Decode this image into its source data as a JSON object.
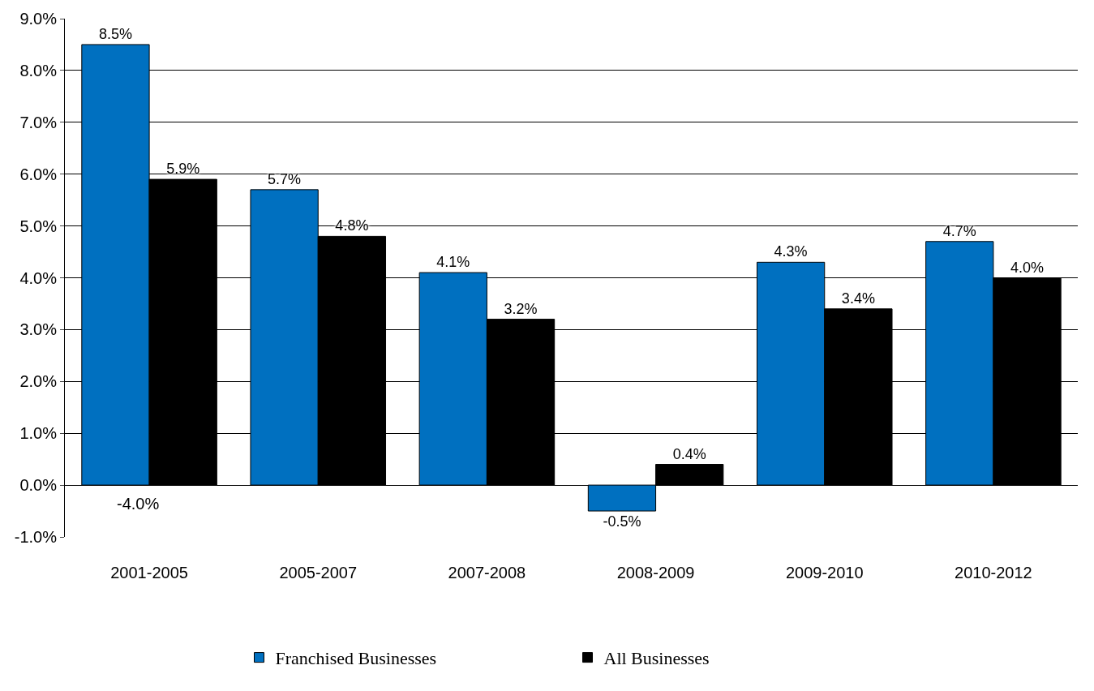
{
  "chart_data": {
    "type": "bar",
    "categories": [
      "2001-2005",
      "2005-2007",
      "2007-2008",
      "2008-2009",
      "2009-2010",
      "2010-2012"
    ],
    "series": [
      {
        "name": "Franchised Businesses",
        "color": "#0070c0",
        "values": [
          8.5,
          5.7,
          4.1,
          -0.5,
          4.3,
          4.7
        ],
        "value_labels": [
          "8.5%",
          "5.7%",
          "4.1%",
          "-0.5%",
          "4.3%",
          "4.7%"
        ]
      },
      {
        "name": "All Businesses",
        "color": "#000000",
        "values": [
          5.9,
          4.8,
          3.2,
          0.4,
          3.4,
          4.0
        ],
        "value_labels": [
          "5.9%",
          "4.8%",
          "3.2%",
          "0.4%",
          "3.4%",
          "4.0%"
        ]
      }
    ],
    "ylim": [
      -1,
      9
    ],
    "yticks": [
      {
        "value": -1,
        "label": "-1.0%"
      },
      {
        "value": 0,
        "label": "0.0%"
      },
      {
        "value": 1,
        "label": "1.0%"
      },
      {
        "value": 2,
        "label": "2.0%"
      },
      {
        "value": 3,
        "label": "3.0%"
      },
      {
        "value": 4,
        "label": "4.0%"
      },
      {
        "value": 5,
        "label": "5.0%"
      },
      {
        "value": 6,
        "label": "6.0%"
      },
      {
        "value": 7,
        "label": "7.0%"
      },
      {
        "value": 8,
        "label": "8.0%"
      },
      {
        "value": 9,
        "label": "9.0%"
      }
    ],
    "annotations": [
      "-4.0%"
    ],
    "grid": "y",
    "legend": "bottom"
  }
}
